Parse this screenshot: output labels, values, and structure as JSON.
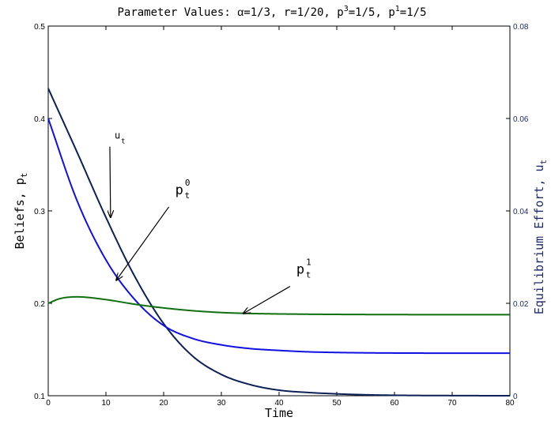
{
  "chart_data": {
    "type": "line",
    "title": {
      "prefix": "Parameter Values: ",
      "alpha_sym": "α",
      "alpha_val": "=1/3, r=1/20, p",
      "sup1": "3",
      "mid": "=1/5, p",
      "sup2": "1",
      "suffix": "=1/5"
    },
    "xlabel": "Time",
    "ylabel_left": {
      "base": "Beliefs, p",
      "sub": "t"
    },
    "ylabel_right": {
      "base": "Equilibrium Effort, u",
      "sub": "t"
    },
    "xlim": [
      0,
      80
    ],
    "ylim_left": [
      0.1,
      0.5
    ],
    "ylim_right": [
      0,
      0.08
    ],
    "x_ticks": [
      "0",
      "10",
      "20",
      "30",
      "40",
      "50",
      "60",
      "70",
      "80"
    ],
    "y_left_ticks": [
      "0.1",
      "0.2",
      "0.3",
      "0.4",
      "0.5"
    ],
    "y_right_ticks": [
      "0",
      "0.02",
      "0.04",
      "0.06",
      "0.08"
    ],
    "grid": false,
    "series": [
      {
        "name": "u_t",
        "axis": "right",
        "color": "#0c2157",
        "x": [
          0,
          5,
          10,
          15,
          20,
          25,
          30,
          35,
          40,
          45,
          50,
          55,
          60,
          65,
          70,
          75,
          80
        ],
        "y": [
          0.0665,
          0.0527,
          0.0386,
          0.0258,
          0.0156,
          0.0086,
          0.0046,
          0.0024,
          0.0012,
          0.0007,
          0.0004,
          0.0002,
          0.0001,
          5e-05,
          3e-05,
          1e-05,
          0.0
        ]
      },
      {
        "name": "p_t^0",
        "axis": "left",
        "color": "#1010e0",
        "x": [
          0,
          5,
          10,
          15,
          20,
          25,
          30,
          35,
          40,
          45,
          50,
          55,
          60,
          65,
          70,
          75,
          80
        ],
        "y": [
          0.4,
          0.311,
          0.247,
          0.204,
          0.176,
          0.162,
          0.155,
          0.151,
          0.149,
          0.1475,
          0.1468,
          0.1464,
          0.1462,
          0.1461,
          0.146,
          0.146,
          0.146
        ]
      },
      {
        "name": "p_t^1",
        "axis": "left",
        "color": "#107010",
        "x": [
          0,
          2,
          5,
          10,
          15,
          20,
          25,
          30,
          35,
          40,
          50,
          60,
          70,
          80
        ],
        "y": [
          0.2,
          0.205,
          0.207,
          0.204,
          0.199,
          0.195,
          0.192,
          0.19,
          0.189,
          0.1885,
          0.188,
          0.1878,
          0.1877,
          0.1877
        ]
      }
    ],
    "annotations": [
      {
        "label": "u",
        "sub": "t",
        "sup": "",
        "text_x": 11.5,
        "text_y": 0.378,
        "arrow_x": 10.8,
        "arrow_y": 0.293
      },
      {
        "label": "p",
        "sub": "t",
        "sup": "0",
        "text_x": 22.0,
        "text_y": 0.318,
        "arrow_x": 11.8,
        "arrow_y": 0.225
      },
      {
        "label": "p",
        "sub": "t",
        "sup": "1",
        "text_x": 43.0,
        "text_y": 0.232,
        "arrow_x": 33.8,
        "arrow_y": 0.189
      }
    ]
  }
}
